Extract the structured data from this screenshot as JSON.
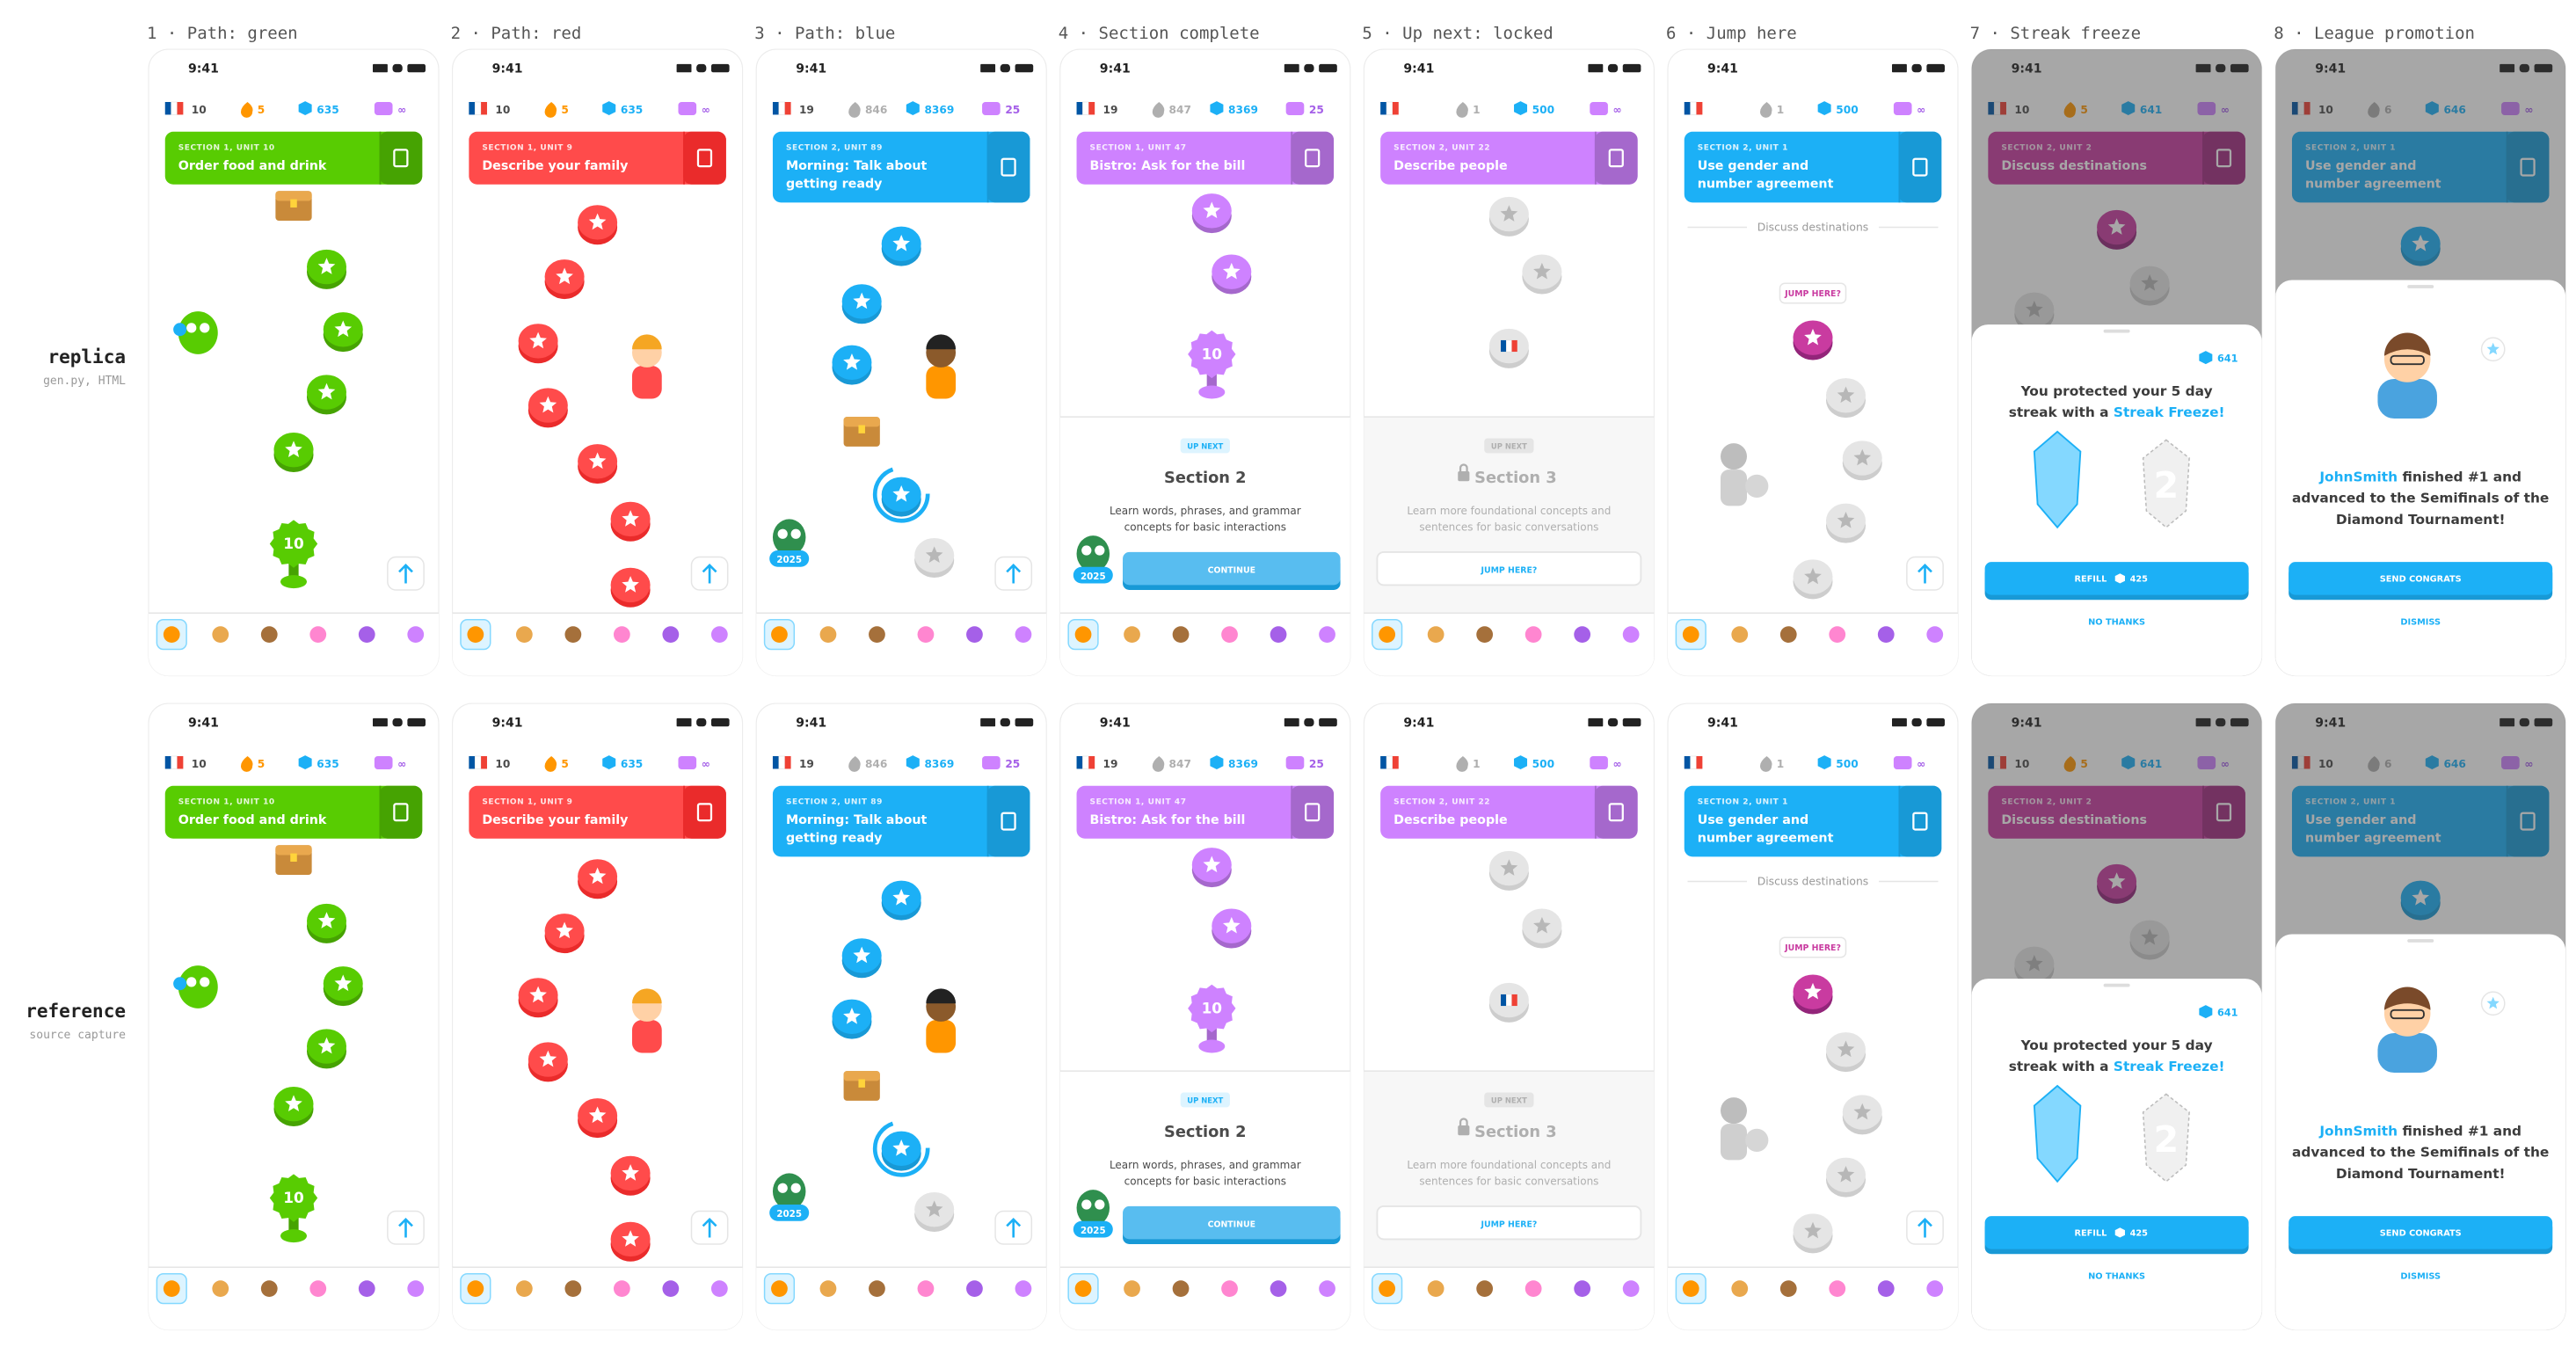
{
  "rows": [
    {
      "label": "replica",
      "sublabel": "gen.py, HTML"
    },
    {
      "label": "reference",
      "sublabel": "source capture"
    }
  ],
  "screens": [
    {
      "caption": "1 · Path: green",
      "time": "9:41",
      "theme": "#58cc02",
      "theme_dark": "#46a302",
      "stats": {
        "flag": "10",
        "streak": "5",
        "gems": "635",
        "energy": "∞"
      },
      "streak_active": true,
      "banner": {
        "section": "SECTION 1, UNIT 10",
        "title": [
          "Order food and drink"
        ]
      },
      "badge": "10"
    },
    {
      "caption": "2 · Path: red",
      "time": "9:41",
      "theme": "#ff4b4b",
      "theme_dark": "#ea2b2b",
      "stats": {
        "flag": "10",
        "streak": "5",
        "gems": "635",
        "energy": "∞"
      },
      "streak_active": true,
      "banner": {
        "section": "SECTION 1, UNIT 9",
        "title": [
          "Describe your family"
        ]
      }
    },
    {
      "caption": "3 · Path: blue",
      "time": "9:41",
      "theme": "#1cb0f6",
      "theme_dark": "#1899d6",
      "stats": {
        "flag": "19",
        "streak": "846",
        "gems": "8369",
        "energy": "25"
      },
      "streak_active": false,
      "banner": {
        "section": "SECTION 2, UNIT 89",
        "title": [
          "Morning: Talk about",
          "getting ready"
        ]
      },
      "year": "2025"
    },
    {
      "caption": "4 · Section complete",
      "time": "9:41",
      "theme": "#ce82ff",
      "theme_dark": "#a568cc",
      "stats": {
        "flag": "19",
        "streak": "847",
        "gems": "8369",
        "energy": "25"
      },
      "streak_active": false,
      "banner": {
        "section": "SECTION 1, UNIT 47",
        "title": [
          "Bistro: Ask for the bill"
        ]
      },
      "badge": "10",
      "year": "2025",
      "next": {
        "tag": "UP NEXT",
        "title": "Section 2",
        "desc": [
          "Learn words, phrases, and grammar",
          "concepts for basic interactions"
        ],
        "button": "CONTINUE"
      }
    },
    {
      "caption": "5 · Up next: locked",
      "time": "9:41",
      "theme": "#ce82ff",
      "theme_dark": "#a568cc",
      "stats": {
        "streak": "1",
        "gems": "500",
        "energy": "∞"
      },
      "streak_active": false,
      "banner": {
        "section": "SECTION 2, UNIT 22",
        "title": [
          "Describe people"
        ]
      },
      "next": {
        "tag": "UP NEXT",
        "title": "Section 3",
        "desc": [
          "Learn more foundational concepts and",
          "sentences for basic conversations"
        ],
        "button": "JUMP HERE?"
      }
    },
    {
      "caption": "6 · Jump here",
      "time": "9:41",
      "theme": "#1cb0f6",
      "theme_dark": "#1899d6",
      "stats": {
        "streak": "1",
        "gems": "500",
        "energy": "∞"
      },
      "streak_active": false,
      "banner": {
        "section": "SECTION 2, UNIT 1",
        "title": [
          "Use gender and",
          "number agreement"
        ]
      },
      "divider": "Discuss destinations",
      "tip": "JUMP HERE?"
    },
    {
      "caption": "7 · Streak freeze",
      "time": "9:41",
      "theme": "#c93ba0",
      "theme_dark": "#a02a80",
      "stats": {
        "flag": "10",
        "streak": "5",
        "gems": "641",
        "energy": "∞"
      },
      "streak_active": true,
      "banner": {
        "section": "SECTION 2, UNIT 2",
        "title": [
          "Discuss destinations"
        ]
      },
      "modal": {
        "gems": "641",
        "lines": [
          [
            {
              "t": "You protected your 5 day"
            }
          ],
          [
            {
              "t": "streak with a "
            },
            {
              "t": "Streak Freeze!",
              "accent": true
            }
          ]
        ],
        "freeze_count": "2",
        "button": "REFILL",
        "price": "425",
        "secondary": "NO THANKS"
      }
    },
    {
      "caption": "8 · League promotion",
      "time": "9:41",
      "theme": "#1cb0f6",
      "theme_dark": "#1899d6",
      "stats": {
        "flag": "10",
        "streak": "6",
        "gems": "646",
        "energy": "∞"
      },
      "streak_active": false,
      "banner": {
        "section": "SECTION 2, UNIT 1",
        "title": [
          "Use gender and",
          "number agreement"
        ]
      },
      "modal": {
        "lines": [
          [
            {
              "t": "JohnSmith",
              "accent": true
            },
            {
              "t": " finished #1 and"
            }
          ],
          [
            {
              "t": "advanced to the Semifinals of the"
            }
          ],
          [
            {
              "t": "Diamond Tournament!"
            }
          ]
        ],
        "button": "SEND CONGRATS",
        "secondary": "DISMISS"
      }
    }
  ]
}
